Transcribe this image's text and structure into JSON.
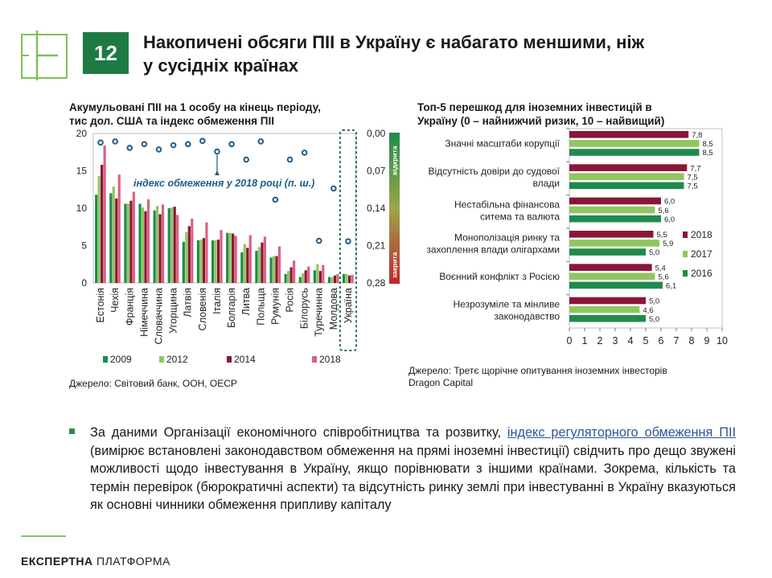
{
  "slide": {
    "number": "12",
    "title_line1": "Накопичені обсяги ПІІ в Україну є набагато меншими, ніж",
    "title_line2": "у сусідніх країнах"
  },
  "left_chart_title_line1": "Акумульовані ПІІ на 1 особу на кінець періоду,",
  "left_chart_title_line2": "тис дол. США та індекс обмеження ПІІ",
  "left_source": "Джерело: Світовий банк, ООН, OECP",
  "right_chart_title_line1": "Топ-5 перешкод для іноземних інвестицій в",
  "right_chart_title_line2": "Україну (0 – найнижчий ризик, 10 – найвищий)",
  "right_source_line1": "Джерело: Третє щорічне опитування іноземних інвесторів",
  "right_source_line2": "Dragon Capital",
  "bullet": {
    "text_before": "За даними Організації економічного співробітництва та розвитку, ",
    "link_text": "індекс регуляторного обмеження ПІІ",
    "text_after": " (вимірює встановлені законодавством обмеження на прямі іноземні інвестиції) свідчить про дещо звужені можливості щодо інвестування в Україну, якщо порівнювати з іншими країнами. Зокрема, кількість та термін перевірок (бюрократичні аспекти) та відсутність ринку землі при інвестуванні в Україну вказуються як основні чинники обмеження припливу капіталу"
  },
  "footer": {
    "brand_bold": "ЕКСПЕРТНА",
    "brand_light": "ПЛАТФОРМА"
  },
  "colors": {
    "brand_green": "#1e7a43",
    "s2009": "#1f8a4c",
    "s2012": "#8fc660",
    "s2014": "#8b1538",
    "s2018": "#d9637f",
    "index_marker": "#1f5c8a",
    "r2016": "#1f8a4c",
    "r2017": "#8fc660",
    "r2018": "#8b1538",
    "link": "#2f5597"
  },
  "chart_data": [
    {
      "type": "bar",
      "categories": [
        "Естонія",
        "Чехія",
        "Франція",
        "Німеччина",
        "Словаччина",
        "Угорщина",
        "Латвія",
        "Словенія",
        "Італія",
        "Болгарія",
        "Литва",
        "Польща",
        "Румунія",
        "Росія",
        "Білорусь",
        "Туречинна",
        "Молдова",
        "Україна"
      ],
      "series": [
        {
          "name": "2009",
          "values": [
            11.8,
            12.0,
            10.6,
            10.6,
            9.7,
            10.0,
            5.5,
            5.7,
            5.7,
            6.7,
            4.1,
            4.3,
            3.4,
            1.2,
            0.8,
            1.7,
            0.8,
            1.2
          ]
        },
        {
          "name": "2012",
          "values": [
            14.3,
            12.9,
            10.6,
            10.1,
            10.3,
            10.1,
            6.8,
            5.8,
            5.7,
            6.7,
            5.2,
            4.8,
            3.6,
            1.6,
            1.3,
            2.5,
            0.8,
            1.2
          ]
        },
        {
          "name": "2014",
          "values": [
            15.8,
            11.3,
            11.0,
            9.6,
            9.2,
            10.2,
            7.6,
            6.0,
            5.8,
            6.6,
            4.7,
            5.4,
            3.6,
            2.1,
            1.7,
            1.6,
            1.0,
            1.0
          ]
        },
        {
          "name": "2018",
          "values": [
            18.4,
            14.5,
            12.2,
            11.2,
            10.5,
            9.1,
            8.6,
            8.1,
            7.1,
            6.3,
            6.4,
            6.2,
            4.9,
            3.0,
            2.2,
            2.4,
            1.2,
            1.1
          ]
        }
      ],
      "index_series": {
        "name": "індекс обмеження у 2018 році (п. ш.)",
        "values": [
          0.017,
          0.015,
          0.027,
          0.02,
          0.03,
          0.022,
          0.02,
          0.014,
          0.034,
          0.02,
          0.049,
          0.015,
          0.124,
          0.049,
          0.036,
          0.201,
          0.103,
          0.202
        ]
      },
      "ylim": [
        0,
        20
      ],
      "yticks": [
        "0",
        "5",
        "10",
        "15",
        "20"
      ],
      "y2lim": [
        0,
        0.28
      ],
      "y2ticks": [
        "0,00",
        "0,07",
        "0,14",
        "0,21",
        "0,28"
      ],
      "y2_inverted": true,
      "gradient_top_label": "відкрита",
      "gradient_bottom_label": "закрита",
      "annotation": "індекс обмеження у 2018 році (п. ш.)",
      "legend": [
        "2009",
        "2012",
        "2014",
        "2018"
      ],
      "highlight_category": "Україна"
    },
    {
      "type": "bar",
      "orientation": "horizontal",
      "categories": [
        [
          "Значні масштаби  корупції"
        ],
        [
          "Відсутність довіри до судової",
          "влади"
        ],
        [
          "Нестабільна фінансова",
          "ситема та валюта"
        ],
        [
          "Монополізація ринку та",
          "захоплення влади олігархами"
        ],
        [
          "Воєнний конфлікт з Росією"
        ],
        [
          "Незрозуміле та мінливе",
          "законодавство"
        ]
      ],
      "series": [
        {
          "name": "2018",
          "values": [
            7.8,
            7.7,
            6.0,
            5.5,
            5.4,
            5.0
          ],
          "labels": [
            "7,8",
            "7,7",
            "6,0",
            "5,5",
            "5,4",
            "5,0"
          ]
        },
        {
          "name": "2017",
          "values": [
            8.5,
            7.5,
            5.6,
            5.9,
            5.6,
            4.6
          ],
          "labels": [
            "8,5",
            "7,5",
            "5,6",
            "5,9",
            "5,6",
            "4,6"
          ]
        },
        {
          "name": "2016",
          "values": [
            8.5,
            7.5,
            6.0,
            5.0,
            6.1,
            5.0
          ],
          "labels": [
            "8,5",
            "7,5",
            "6,0",
            "5,0",
            "6,1",
            "5,0"
          ]
        }
      ],
      "xlim": [
        0,
        10
      ],
      "xticks": [
        "0",
        "1",
        "2",
        "3",
        "4",
        "5",
        "6",
        "7",
        "8",
        "9",
        "10"
      ],
      "legend": [
        "2018",
        "2017",
        "2016"
      ]
    }
  ]
}
